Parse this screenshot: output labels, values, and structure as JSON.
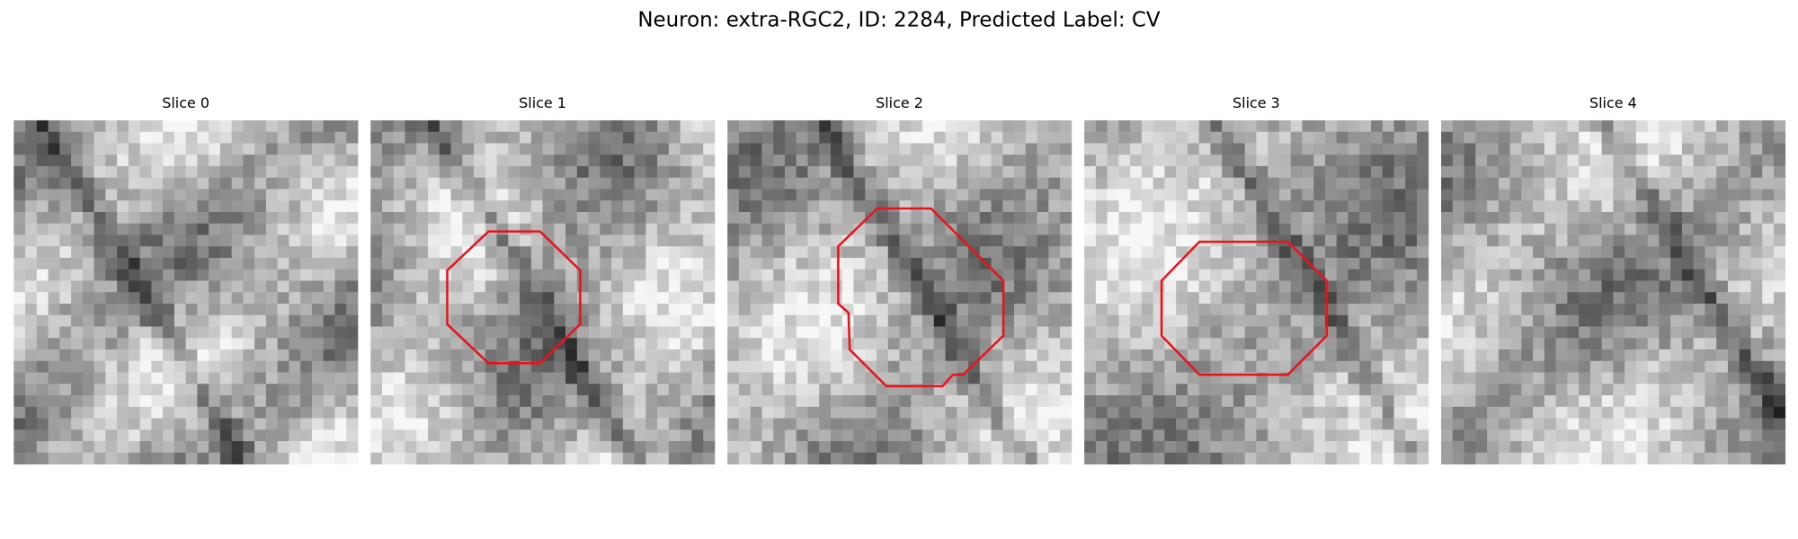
{
  "title": "Neuron: extra-RGC2, ID: 2284, Predicted Label: CV",
  "panels": [
    {
      "title": "Slice 0"
    },
    {
      "title": "Slice 1"
    },
    {
      "title": "Slice 2"
    },
    {
      "title": "Slice 3"
    },
    {
      "title": "Slice 4"
    }
  ]
}
